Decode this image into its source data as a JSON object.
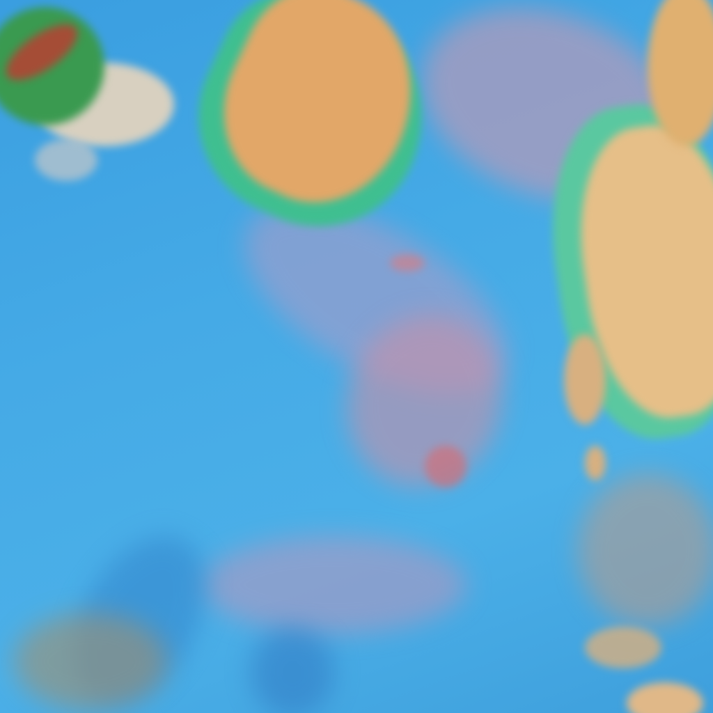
{
  "image": {
    "kind": "false-color satellite cloud imagery",
    "colors": {
      "ocean": "#45aae6",
      "deep_shadow": "#2f7fc8",
      "high_cloud": "#e0a868",
      "pale_cloud": "#d8d0c0",
      "cloud_edge": "#3fd0a0",
      "haze_pink": "#c8909e",
      "dense_core": "#c03a30"
    }
  }
}
